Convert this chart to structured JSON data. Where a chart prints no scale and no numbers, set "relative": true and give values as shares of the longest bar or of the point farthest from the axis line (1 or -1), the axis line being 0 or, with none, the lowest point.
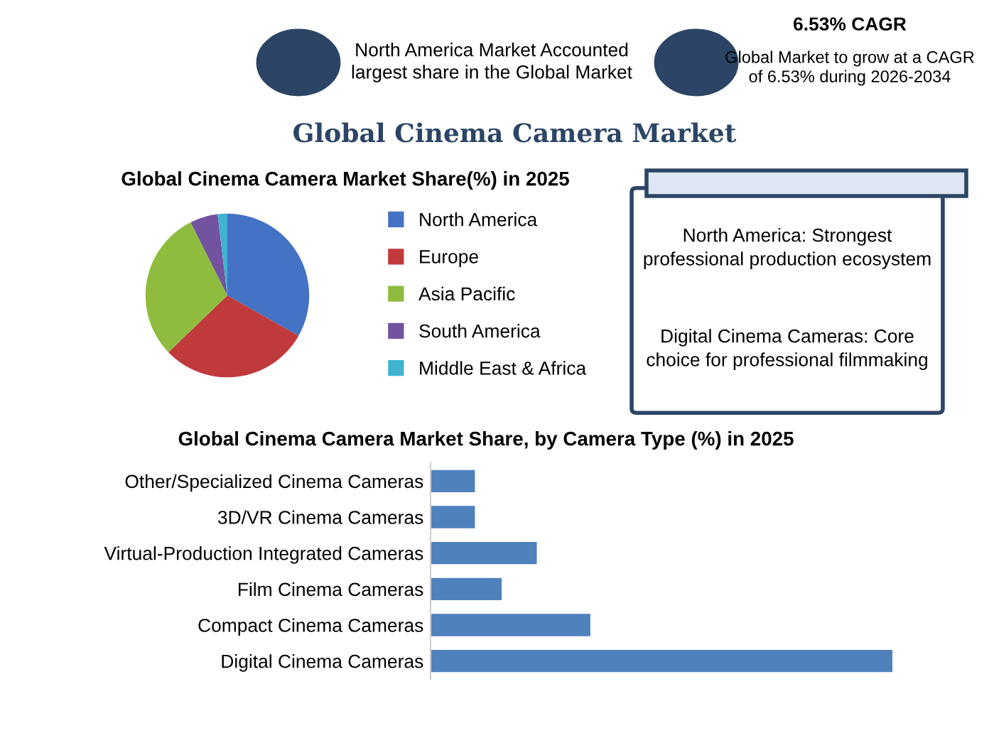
{
  "chart_data": [
    {
      "type": "other",
      "title": "Global Cinema Camera Market",
      "annotations": [
        "North America Market Accounted largest share in the Global Market",
        "6.53% CAGR",
        "Global Market to grow at a CAGR of 6.53% during 2026-2034"
      ]
    },
    {
      "type": "pie",
      "title": "Global Cinema Camera Market Share(%) in 2025",
      "categories": [
        "North America",
        "Europe",
        "Asia Pacific",
        "South America",
        "Middle East & Africa"
      ],
      "values": [
        33.2,
        29.6,
        29.8,
        5.5,
        1.9
      ],
      "colors": [
        "#4472c4",
        "#c0393b",
        "#8fbc3f",
        "#7153a0",
        "#3fb3d0"
      ],
      "legend": "right"
    },
    {
      "type": "bar",
      "orientation": "horizontal",
      "relative": true,
      "title": "Global Cinema Camera Market Share, by Camera Type (%) in 2025",
      "categories": [
        "Other/Specialized Cinema Cameras",
        "3D/VR Cinema Cameras",
        "Virtual-Production Integrated Cameras",
        "Film Cinema Cameras",
        "Compact Cinema Cameras",
        "Digital Cinema Cameras"
      ],
      "values": [
        0.096,
        0.096,
        0.23,
        0.154,
        0.346,
        1
      ],
      "color": "#4f81bd"
    },
    {
      "type": "other",
      "annotations": [
        "North America: Strongest professional production ecosystem",
        "Digital Cinema Cameras: Core choice for professional filmmaking"
      ]
    }
  ]
}
